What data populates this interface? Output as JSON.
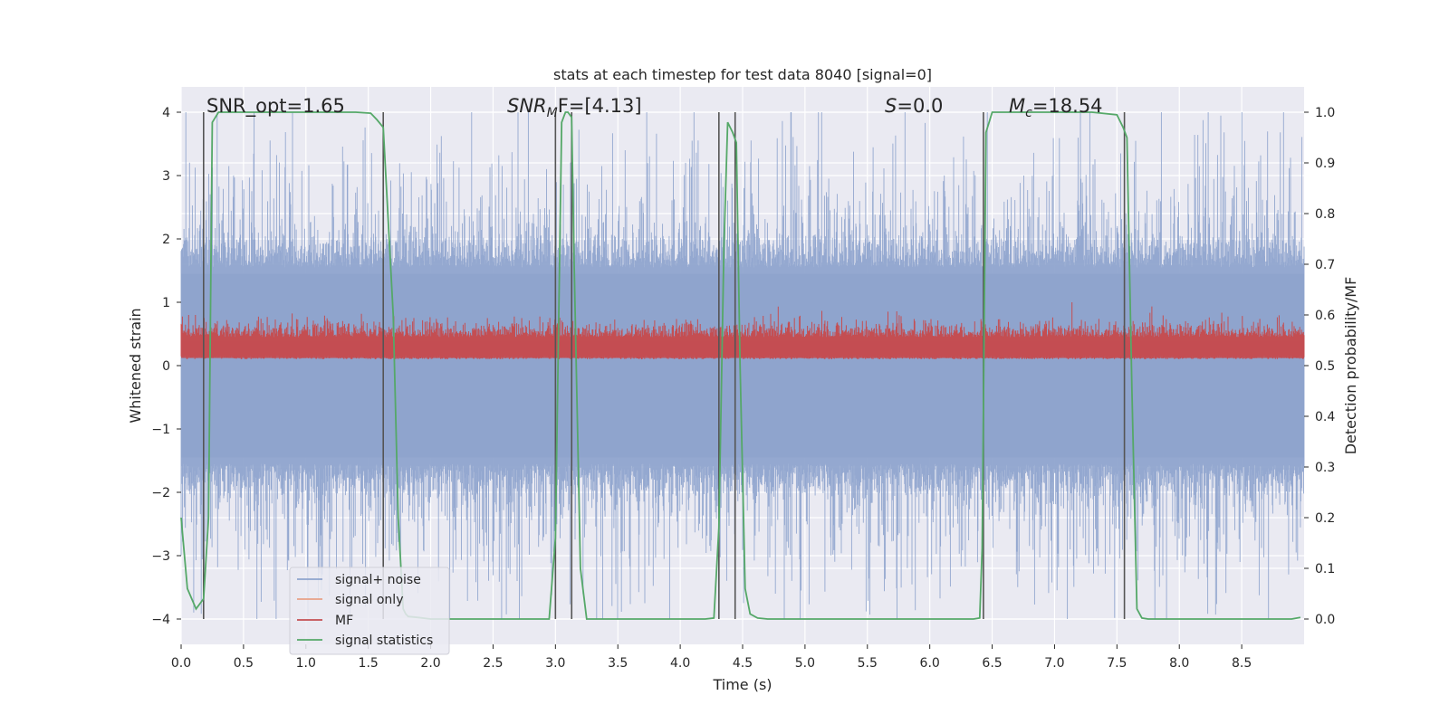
{
  "chart_data": {
    "type": "line",
    "title": "stats at each timestep for test data 8040 [signal=0]",
    "xlabel": "Time (s)",
    "ylabel": "Whitened strain",
    "ylabel_right": "Detection probability/MF",
    "xlim": [
      0,
      9.0
    ],
    "ylim": [
      -4.4,
      4.4
    ],
    "ylim_right": [
      -0.05,
      1.05
    ],
    "xticks": [
      0.0,
      0.5,
      1.0,
      1.5,
      2.0,
      2.5,
      3.0,
      3.5,
      4.0,
      4.5,
      5.0,
      5.5,
      6.0,
      6.5,
      7.0,
      7.5,
      8.0,
      8.5
    ],
    "xtick_labels": [
      "0.0",
      "0.5",
      "1.0",
      "1.5",
      "2.0",
      "2.5",
      "3.0",
      "3.5",
      "4.0",
      "4.5",
      "5.0",
      "5.5",
      "6.0",
      "6.5",
      "7.0",
      "7.5",
      "8.0",
      "8.5"
    ],
    "yticks": [
      -4,
      -3,
      -2,
      -1,
      0,
      1,
      2,
      3,
      4
    ],
    "ytick_labels": [
      "−4",
      "−3",
      "−2",
      "−1",
      "0",
      "1",
      "2",
      "3",
      "4"
    ],
    "yticks_right": [
      0.0,
      0.1,
      0.2,
      0.3,
      0.4,
      0.5,
      0.6,
      0.7,
      0.8,
      0.9,
      1.0
    ],
    "ytick_labels_right": [
      "0.0",
      "0.1",
      "0.2",
      "0.3",
      "0.4",
      "0.5",
      "0.6",
      "0.7",
      "0.8",
      "0.9",
      "1.0"
    ],
    "annotations": {
      "snr_opt": "SNR_opt=1.65",
      "snr_mf_main": "SNR",
      "snr_mf_sub": "M",
      "snr_mf_rest": "F=[4.13]",
      "s_main": "S",
      "s_rest": "=0.0",
      "mc_main": "M",
      "mc_sub": "c",
      "mc_rest": "=18.54"
    },
    "legend": {
      "position": "lower-left",
      "entries": [
        {
          "label": "signal+ noise",
          "color": "#8fa4cd"
        },
        {
          "label": "signal only",
          "color": "#e8a186"
        },
        {
          "label": "MF",
          "color": "#c44e52"
        },
        {
          "label": "signal statistics",
          "color": "#55a868"
        }
      ]
    },
    "series": [
      {
        "name": "signal+ noise",
        "axis": "left",
        "color": "#8fa4cd",
        "style": "dense noise",
        "duration": 9.0,
        "typical_range": [
          -1.6,
          1.6
        ],
        "peak_range": [
          -4.0,
          4.0
        ]
      },
      {
        "name": "MF",
        "axis": "left",
        "color": "#c44e52",
        "style": "dense noise",
        "baseline": 0.1,
        "typical_range": [
          0.05,
          0.65
        ],
        "peak": 1.0
      },
      {
        "name": "signal statistics",
        "axis": "right",
        "color": "#55a868",
        "x": [
          0.0,
          0.05,
          0.12,
          0.18,
          0.22,
          0.25,
          0.3,
          0.4,
          0.6,
          1.0,
          1.4,
          1.52,
          1.57,
          1.62,
          1.7,
          1.74,
          1.78,
          1.8,
          1.82,
          1.9,
          2.0,
          2.1,
          2.2,
          2.4,
          2.6,
          2.8,
          2.95,
          3.0,
          3.05,
          3.08,
          3.1,
          3.13,
          3.15,
          3.2,
          3.25,
          3.3,
          3.5,
          3.8,
          4.0,
          4.2,
          4.27,
          4.31,
          4.35,
          4.38,
          4.42,
          4.45,
          4.48,
          4.52,
          4.56,
          4.62,
          4.7,
          4.8,
          5.0,
          5.5,
          6.0,
          6.35,
          6.4,
          6.42,
          6.45,
          6.5,
          6.6,
          7.0,
          7.3,
          7.5,
          7.55,
          7.58,
          7.62,
          7.66,
          7.7,
          7.75,
          8.0,
          8.5,
          8.9,
          8.97
        ],
        "y": [
          0.2,
          0.06,
          0.02,
          0.04,
          0.2,
          0.98,
          1.0,
          1.0,
          1.0,
          1.0,
          1.0,
          0.998,
          0.985,
          0.97,
          0.6,
          0.2,
          0.02,
          0.01,
          0.005,
          0.003,
          0.0,
          0.0,
          0.0,
          0.0,
          0.0,
          0.0,
          0.0,
          0.16,
          0.98,
          1.0,
          1.0,
          0.99,
          0.7,
          0.1,
          0.0,
          0.0,
          0.0,
          0.0,
          0.0,
          0.0,
          0.002,
          0.18,
          0.73,
          0.98,
          0.96,
          0.94,
          0.5,
          0.06,
          0.01,
          0.002,
          0.0,
          0.0,
          0.0,
          0.0,
          0.0,
          0.0,
          0.002,
          0.14,
          0.96,
          1.0,
          1.0,
          1.0,
          1.0,
          0.995,
          0.97,
          0.95,
          0.45,
          0.02,
          0.002,
          0.0,
          0.0,
          0.0,
          0.0,
          0.003
        ]
      }
    ],
    "vertical_lines": [
      0.18,
      1.62,
      3.0,
      3.13,
      4.31,
      4.44,
      6.43,
      7.56
    ],
    "vertical_line_range": [
      -4,
      4
    ]
  }
}
